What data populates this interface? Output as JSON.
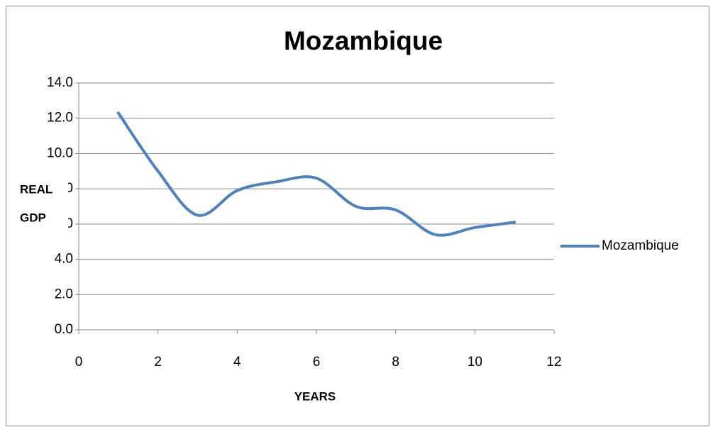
{
  "chart_data": {
    "type": "line",
    "title": "Mozambique",
    "x_label": "YEARS",
    "y_label": [
      "REAL",
      "GDP"
    ],
    "x": [
      1,
      2,
      3,
      4,
      5,
      6,
      7,
      8,
      9,
      10,
      11
    ],
    "series": [
      {
        "name": "Mozambique",
        "color": "#4f81bd",
        "values": [
          12.3,
          9.0,
          6.5,
          7.9,
          8.4,
          8.6,
          7.0,
          6.8,
          5.4,
          5.8,
          6.1
        ]
      }
    ],
    "xlim": [
      0,
      12
    ],
    "xticks": [
      0,
      2,
      4,
      6,
      8,
      10,
      12
    ],
    "ylim": [
      0,
      14
    ],
    "yticks": [
      {
        "value": 0,
        "label": "0.0"
      },
      {
        "value": 2,
        "label": "2.0"
      },
      {
        "value": 4,
        "label": "4.0"
      },
      {
        "value": 6,
        "label": "6.0"
      },
      {
        "value": 8,
        "label": "8.0"
      },
      {
        "value": 10,
        "label": "10.0"
      },
      {
        "value": 12,
        "label": "12.0"
      },
      {
        "value": 14,
        "label": "14.0"
      }
    ],
    "grid": true,
    "smooth": true,
    "legend": "right"
  }
}
